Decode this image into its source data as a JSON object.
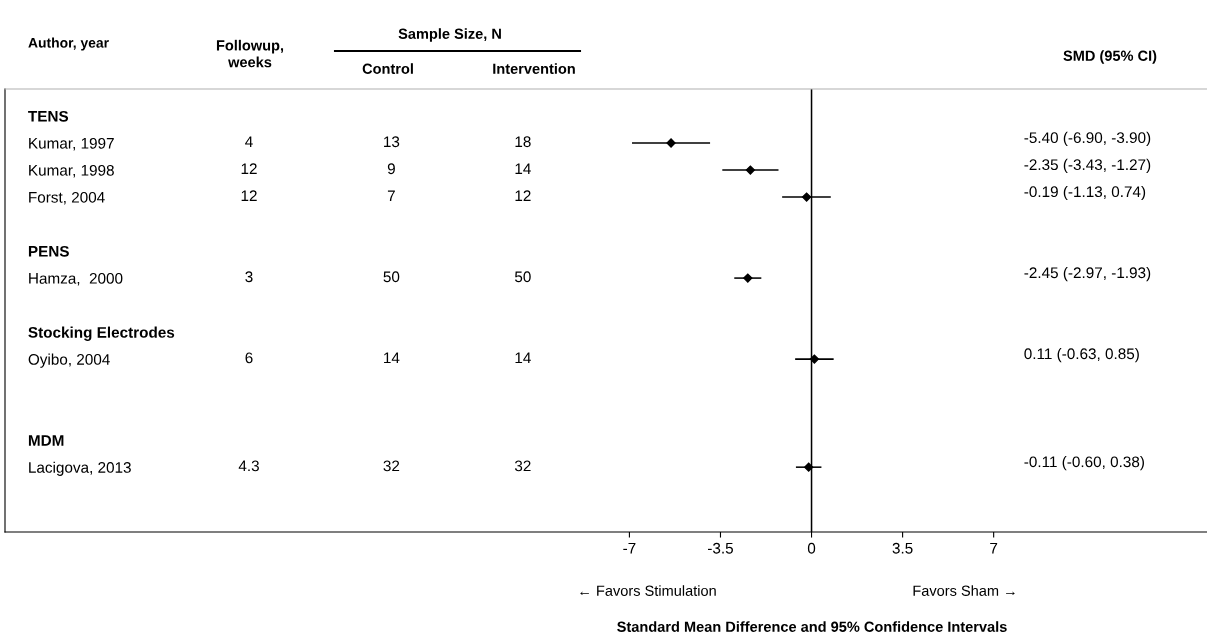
{
  "chart_data": {
    "type": "scatter",
    "orientation": "horizontal",
    "ylabel": "Author, year",
    "categories": [
      "TENS",
      "Kumar, 1997",
      "Kumar, 1998",
      "Forst, 2004",
      null,
      "PENS",
      "Hamza,  2000",
      null,
      "Stocking Electrodes",
      "Oyibo, 2004",
      null,
      null,
      "MDM",
      "Lacigova, 2013"
    ],
    "values": [
      null,
      -5.4,
      -2.35,
      -0.19,
      null,
      null,
      -2.45,
      null,
      null,
      0.11,
      null,
      null,
      null,
      -0.11
    ],
    "errors": [
      null,
      [
        -6.9,
        -3.9
      ],
      [
        -3.43,
        -1.27
      ],
      [
        -1.13,
        0.74
      ],
      null,
      null,
      [
        -2.97,
        -1.93
      ],
      null,
      null,
      [
        -0.63,
        0.85
      ],
      null,
      null,
      null,
      [
        -0.6,
        0.38
      ]
    ],
    "color": "#000000",
    "marker": "diamond",
    "xlim": [
      -31,
      15.2
    ],
    "xticks": [
      -7,
      -3.5,
      0,
      3.5,
      7
    ],
    "ref_lines": [
      {
        "axis": "x",
        "value": 0,
        "color": "#000000"
      }
    ],
    "annotations": [
      "Followup,\nweeks",
      "Sample Size, N",
      "Control",
      "Intervention",
      "SMD (95% CI)",
      "← Favors Stimulation",
      "Favors Sham →",
      "Standard Mean Difference and 95% Confidence Intervals",
      "4",
      "13",
      "18",
      "-5.40 (-6.90, -3.90)",
      "12",
      "9",
      "14",
      "-2.35 (-3.43, -1.27)",
      "12",
      "7",
      "12",
      "-0.19 (-1.13, 0.74)",
      "3",
      "50",
      "50",
      "-2.45 (-2.97, -1.93)",
      "6",
      "14",
      "14",
      "0.11 (-0.63, 0.85)",
      "4.3",
      "32",
      "32",
      "-0.11 (-0.60, 0.38)"
    ],
    "grid": false
  }
}
